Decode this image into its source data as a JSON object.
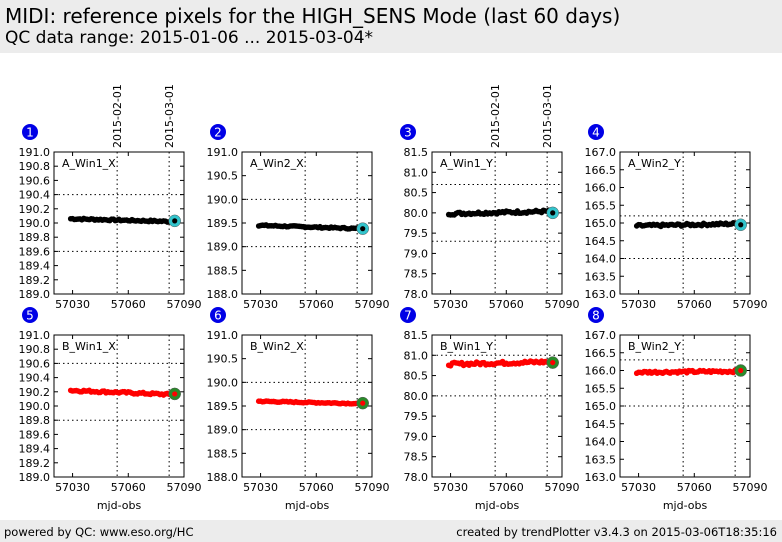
{
  "header": {
    "title": "MIDI: reference pixels for the HIGH_SENS Mode (last 60 days)",
    "subtitle": "QC data range: 2015-01-06 ... 2015-03-04*"
  },
  "footer": {
    "left": "powered by QC: www.eso.org/HC",
    "right": "created by trendPlotter v3.4.3 on 2015-03-06T18:35:16"
  },
  "colors": {
    "series_a": "#000000",
    "series_b": "#ff0000",
    "last_a": "#33c4cc",
    "last_b": "#2a8a2a",
    "badge": "#0000e6"
  },
  "chart_data": [
    {
      "id": "1",
      "type": "scatter",
      "label": "A_Win1_X",
      "xlabel": "",
      "xlim": [
        57020,
        57090
      ],
      "xticks": [
        57030,
        57060,
        57090
      ],
      "ylim": [
        189.0,
        191.0
      ],
      "yticks": [
        189.0,
        189.2,
        189.4,
        189.6,
        189.8,
        190.0,
        190.2,
        190.4,
        190.6,
        190.8,
        191.0
      ],
      "ytick_decimals": 1,
      "ref_lines": [
        190.4,
        189.6
      ],
      "date_marks": [
        {
          "x": 57054,
          "label": "2015-02-01"
        },
        {
          "x": 57082,
          "label": "2015-03-01"
        }
      ],
      "series": {
        "start": 57029,
        "end": 57084,
        "step": 1,
        "base": 190.06,
        "end_value": 190.02,
        "jitter": 0.012,
        "last": 190.03
      },
      "marker_color": "#000000",
      "last_color": "#33c4cc"
    },
    {
      "id": "2",
      "type": "scatter",
      "label": "A_Win2_X",
      "xlabel": "",
      "xlim": [
        57020,
        57090
      ],
      "xticks": [
        57030,
        57060,
        57090
      ],
      "ylim": [
        188.0,
        191.0
      ],
      "yticks": [
        188.0,
        188.5,
        189.0,
        189.5,
        190.0,
        190.5,
        191.0
      ],
      "ytick_decimals": 1,
      "ref_lines": [
        190.0,
        189.0
      ],
      "date_marks": [
        {
          "x": 57054,
          "label": ""
        },
        {
          "x": 57082,
          "label": ""
        }
      ],
      "series": {
        "start": 57029,
        "end": 57084,
        "step": 1,
        "base": 189.45,
        "end_value": 189.38,
        "jitter": 0.015,
        "last": 189.38
      },
      "marker_color": "#000000",
      "last_color": "#33c4cc"
    },
    {
      "id": "3",
      "type": "scatter",
      "label": "A_Win1_Y",
      "xlabel": "",
      "xlim": [
        57020,
        57090
      ],
      "xticks": [
        57030,
        57060,
        57090
      ],
      "ylim": [
        78.0,
        81.5
      ],
      "yticks": [
        78.0,
        78.5,
        79.0,
        79.5,
        80.0,
        80.5,
        81.0,
        81.5
      ],
      "ytick_decimals": 1,
      "ref_lines": [
        80.7,
        79.3
      ],
      "date_marks": [
        {
          "x": 57054,
          "label": "2015-02-01"
        },
        {
          "x": 57082,
          "label": "2015-03-01"
        }
      ],
      "series": {
        "start": 57029,
        "end": 57084,
        "step": 1,
        "base": 79.98,
        "end_value": 80.04,
        "jitter": 0.035,
        "last": 80.0
      },
      "marker_color": "#000000",
      "last_color": "#33c4cc"
    },
    {
      "id": "4",
      "type": "scatter",
      "label": "A_Win2_Y",
      "xlabel": "",
      "xlim": [
        57020,
        57090
      ],
      "xticks": [
        57030,
        57060,
        57090
      ],
      "ylim": [
        163.0,
        167.0
      ],
      "yticks": [
        163.0,
        163.5,
        164.0,
        164.5,
        165.0,
        165.5,
        166.0,
        166.5,
        167.0
      ],
      "ytick_decimals": 1,
      "ref_lines": [
        165.2,
        164.0
      ],
      "date_marks": [
        {
          "x": 57054,
          "label": ""
        },
        {
          "x": 57082,
          "label": ""
        }
      ],
      "series": {
        "start": 57029,
        "end": 57084,
        "step": 1,
        "base": 164.92,
        "end_value": 164.98,
        "jitter": 0.035,
        "last": 164.95
      },
      "marker_color": "#000000",
      "last_color": "#33c4cc"
    },
    {
      "id": "5",
      "type": "scatter",
      "label": "B_Win1_X",
      "xlabel": "mjd-obs",
      "xlim": [
        57020,
        57090
      ],
      "xticks": [
        57030,
        57060,
        57090
      ],
      "ylim": [
        189.0,
        191.0
      ],
      "yticks": [
        189.0,
        189.2,
        189.4,
        189.6,
        189.8,
        190.0,
        190.2,
        190.4,
        190.6,
        190.8,
        191.0
      ],
      "ytick_decimals": 1,
      "ref_lines": [
        190.6,
        189.8
      ],
      "date_marks": [
        {
          "x": 57054,
          "label": ""
        },
        {
          "x": 57082,
          "label": ""
        }
      ],
      "series": {
        "start": 57029,
        "end": 57084,
        "step": 1,
        "base": 190.22,
        "end_value": 190.16,
        "jitter": 0.015,
        "last": 190.17
      },
      "marker_color": "#ff0000",
      "last_color": "#2a8a2a"
    },
    {
      "id": "6",
      "type": "scatter",
      "label": "B_Win2_X",
      "xlabel": "mjd-obs",
      "xlim": [
        57020,
        57090
      ],
      "xticks": [
        57030,
        57060,
        57090
      ],
      "ylim": [
        188.0,
        191.0
      ],
      "yticks": [
        188.0,
        188.5,
        189.0,
        189.5,
        190.0,
        190.5,
        191.0
      ],
      "ytick_decimals": 1,
      "ref_lines": [
        190.0,
        189.0
      ],
      "date_marks": [
        {
          "x": 57054,
          "label": ""
        },
        {
          "x": 57082,
          "label": ""
        }
      ],
      "series": {
        "start": 57029,
        "end": 57084,
        "step": 1,
        "base": 189.6,
        "end_value": 189.55,
        "jitter": 0.012,
        "last": 189.56
      },
      "marker_color": "#ff0000",
      "last_color": "#2a8a2a"
    },
    {
      "id": "7",
      "type": "scatter",
      "label": "B_Win1_Y",
      "xlabel": "mjd-obs",
      "xlim": [
        57020,
        57090
      ],
      "xticks": [
        57030,
        57060,
        57090
      ],
      "ylim": [
        78.0,
        81.5
      ],
      "yticks": [
        78.0,
        78.5,
        79.0,
        79.5,
        80.0,
        80.5,
        81.0,
        81.5
      ],
      "ytick_decimals": 1,
      "ref_lines": [
        81.0,
        80.0
      ],
      "date_marks": [
        {
          "x": 57054,
          "label": ""
        },
        {
          "x": 57082,
          "label": ""
        }
      ],
      "series": {
        "start": 57029,
        "end": 57084,
        "step": 1,
        "base": 80.78,
        "end_value": 80.84,
        "jitter": 0.04,
        "last": 80.82
      },
      "marker_color": "#ff0000",
      "last_color": "#2a8a2a"
    },
    {
      "id": "8",
      "type": "scatter",
      "label": "B_Win2_Y",
      "xlabel": "mjd-obs",
      "xlim": [
        57020,
        57090
      ],
      "xticks": [
        57030,
        57060,
        57090
      ],
      "ylim": [
        163.0,
        167.0
      ],
      "yticks": [
        163.0,
        163.5,
        164.0,
        164.5,
        165.0,
        165.5,
        166.0,
        166.5,
        167.0
      ],
      "ytick_decimals": 1,
      "ref_lines": [
        166.3,
        165.0
      ],
      "date_marks": [
        {
          "x": 57054,
          "label": ""
        },
        {
          "x": 57082,
          "label": ""
        }
      ],
      "series": {
        "start": 57029,
        "end": 57084,
        "step": 1,
        "base": 165.95,
        "end_value": 165.98,
        "jitter": 0.035,
        "last": 166.0
      },
      "marker_color": "#ff0000",
      "last_color": "#2a8a2a"
    }
  ]
}
